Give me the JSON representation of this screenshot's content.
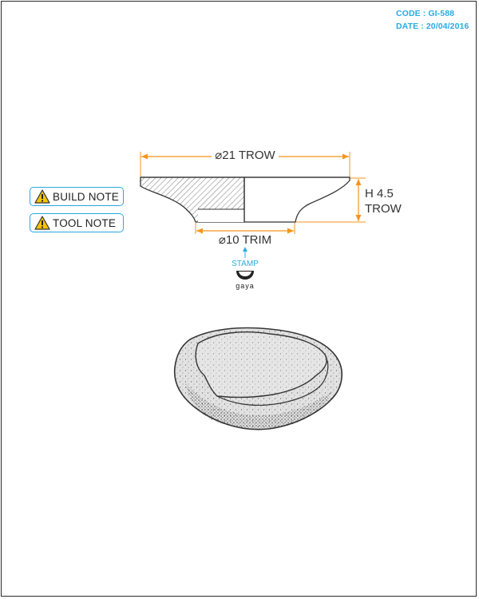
{
  "header": {
    "code": "CODE : GI-588",
    "date": "DATE : 20/04/2016"
  },
  "notes": [
    {
      "label": "BUILD NOTE",
      "icon": "warning-icon"
    },
    {
      "label": "TOOL NOTE",
      "icon": "warning-icon"
    }
  ],
  "dimensions": {
    "top_width": "⌀21 TROW",
    "height_line1": "H 4.5",
    "height_line2": "TROW",
    "base_width": "⌀10 TRIM"
  },
  "stamp": {
    "label": "STAMP",
    "logo_text": "gaya"
  },
  "colors": {
    "dimension_orange": "#f7941d",
    "accent_blue": "#29abe2",
    "warning_yellow": "#f5c400",
    "line_dark": "#333333",
    "stone_fill": "#e0e0e0"
  }
}
